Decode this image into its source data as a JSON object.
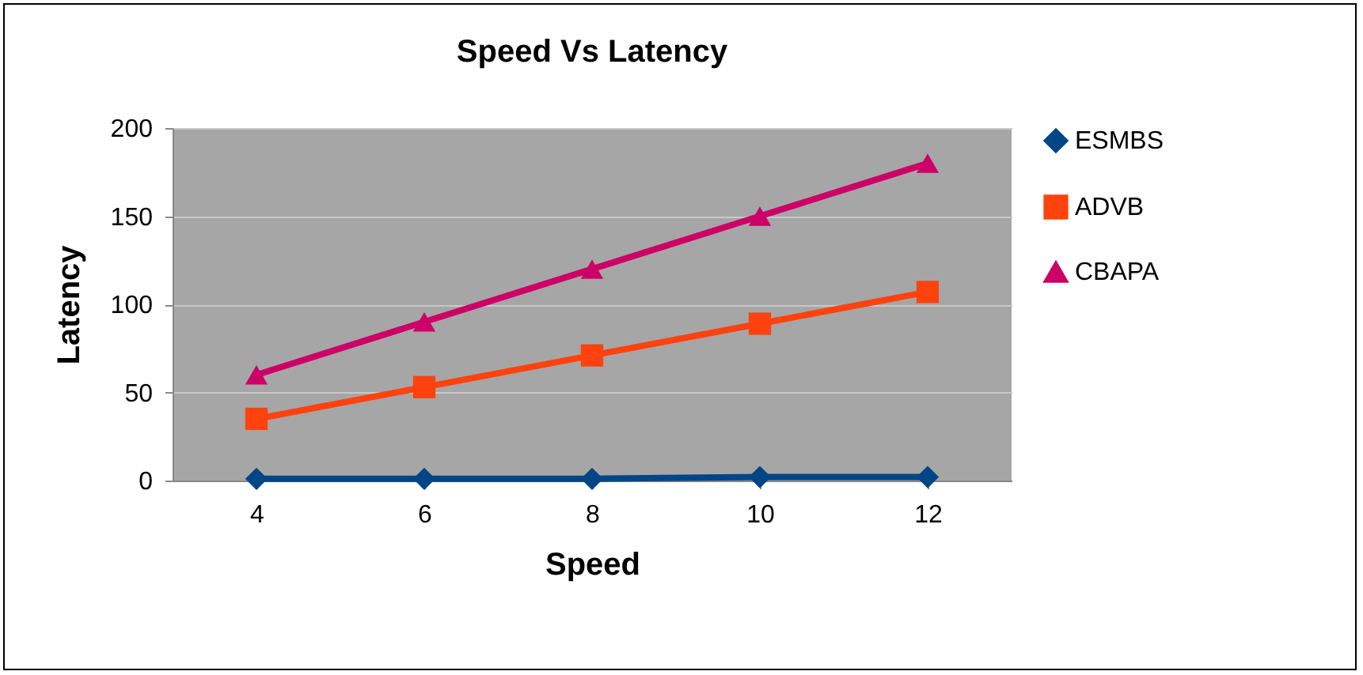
{
  "chart_data": {
    "type": "line",
    "title": "Speed Vs Latency",
    "xlabel": "Speed",
    "ylabel": "Latency",
    "categories": [
      "4",
      "6",
      "8",
      "10",
      "12"
    ],
    "series": [
      {
        "name": "ESMBS",
        "color": "#004586",
        "marker": "diamond",
        "values": [
          1,
          1,
          1,
          2,
          2
        ]
      },
      {
        "name": "ADVB",
        "color": "#ff420e",
        "marker": "square",
        "values": [
          35,
          53,
          71,
          89,
          107
        ]
      },
      {
        "name": "CBAPA",
        "color": "#cc0066",
        "marker": "triangle",
        "values": [
          60,
          90,
          120,
          150,
          180
        ]
      }
    ],
    "ylim": [
      0,
      200
    ],
    "yticks": [
      0,
      50,
      100,
      150,
      200
    ],
    "grid": "y",
    "legend": "right"
  }
}
